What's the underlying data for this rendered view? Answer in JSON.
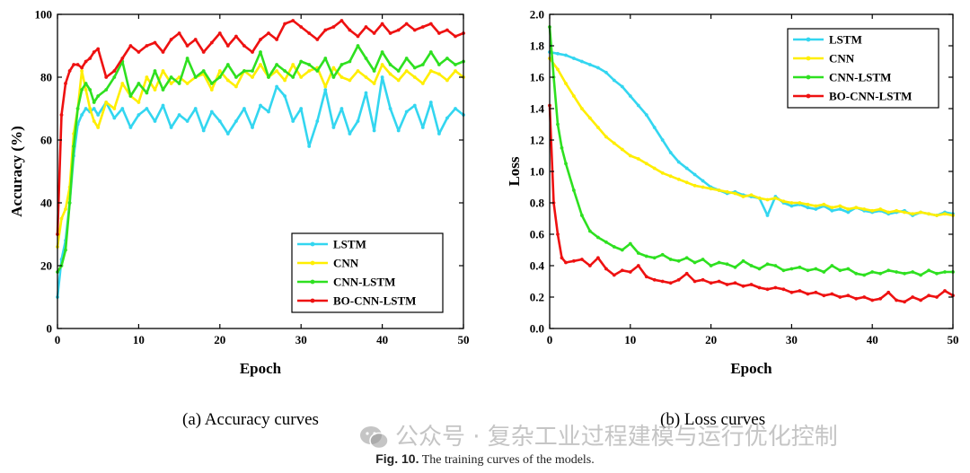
{
  "figure_caption": {
    "label": "Fig. 10.",
    "text": "The training curves of the models."
  },
  "watermark": "公众号 · 复杂工业过程建模与运行优化控制",
  "chart_data": [
    {
      "type": "line",
      "subtitle": "(a) Accuracy curves",
      "xlabel": "Epoch",
      "ylabel": "Accuracy (%)",
      "xlim": [
        0,
        50
      ],
      "ylim": [
        0,
        100
      ],
      "xticks": [
        0,
        10,
        20,
        30,
        40,
        50
      ],
      "yticks": [
        0,
        20,
        40,
        60,
        80,
        100
      ],
      "legend_position": "bottom-right",
      "series": [
        {
          "name": "LSTM",
          "color": "#33d6f0",
          "x": [
            0,
            0.5,
            1,
            1.5,
            2,
            2.5,
            3,
            3.5,
            4,
            4.5,
            5,
            6,
            7,
            8,
            9,
            10,
            11,
            12,
            13,
            14,
            15,
            16,
            17,
            18,
            19,
            20,
            21,
            22,
            23,
            24,
            25,
            26,
            27,
            28,
            29,
            30,
            31,
            32,
            33,
            34,
            35,
            36,
            37,
            38,
            39,
            40,
            41,
            42,
            43,
            44,
            45,
            46,
            47,
            48,
            49,
            50
          ],
          "y": [
            10,
            22,
            28,
            40,
            55,
            65,
            68,
            70,
            69,
            70,
            68,
            72,
            67,
            70,
            64,
            68,
            70,
            66,
            71,
            64,
            68,
            66,
            70,
            63,
            69,
            66,
            62,
            66,
            70,
            64,
            71,
            69,
            77,
            74,
            66,
            70,
            58,
            66,
            76,
            64,
            70,
            62,
            66,
            75,
            63,
            80,
            70,
            63,
            69,
            71,
            64,
            72,
            62,
            67,
            70,
            68
          ]
        },
        {
          "name": "CNN",
          "color": "#ffee00",
          "x": [
            0,
            0.5,
            1,
            1.5,
            2,
            2.5,
            3,
            3.5,
            4,
            4.5,
            5,
            6,
            7,
            8,
            9,
            10,
            11,
            12,
            13,
            14,
            15,
            16,
            17,
            18,
            19,
            20,
            21,
            22,
            23,
            24,
            25,
            26,
            27,
            28,
            29,
            30,
            31,
            32,
            33,
            34,
            35,
            36,
            37,
            38,
            39,
            40,
            41,
            42,
            43,
            44,
            45,
            46,
            47,
            48,
            49,
            50
          ],
          "y": [
            26,
            35,
            38,
            45,
            62,
            70,
            82,
            76,
            70,
            66,
            64,
            72,
            70,
            78,
            74,
            72,
            80,
            76,
            82,
            78,
            80,
            78,
            80,
            81,
            76,
            82,
            79,
            77,
            82,
            80,
            84,
            80,
            82,
            79,
            84,
            80,
            82,
            83,
            77,
            83,
            80,
            79,
            82,
            80,
            78,
            84,
            81,
            79,
            82,
            80,
            78,
            82,
            81,
            79,
            82,
            80
          ]
        },
        {
          "name": "CNN-LSTM",
          "color": "#2ee020",
          "x": [
            0,
            0.5,
            1,
            1.5,
            2,
            2.5,
            3,
            3.5,
            4,
            4.5,
            5,
            6,
            7,
            8,
            9,
            10,
            11,
            12,
            13,
            14,
            15,
            16,
            17,
            18,
            19,
            20,
            21,
            22,
            23,
            24,
            25,
            26,
            27,
            28,
            29,
            30,
            31,
            32,
            33,
            34,
            35,
            36,
            37,
            38,
            39,
            40,
            41,
            42,
            43,
            44,
            45,
            46,
            47,
            48,
            49,
            50
          ],
          "y": [
            18,
            20,
            25,
            40,
            58,
            70,
            76,
            78,
            76,
            72,
            74,
            76,
            80,
            85,
            74,
            78,
            75,
            82,
            76,
            80,
            78,
            86,
            80,
            82,
            78,
            80,
            84,
            80,
            82,
            82,
            88,
            80,
            84,
            82,
            80,
            85,
            84,
            82,
            86,
            80,
            84,
            85,
            90,
            86,
            82,
            88,
            84,
            82,
            86,
            83,
            84,
            88,
            84,
            86,
            84,
            85
          ]
        },
        {
          "name": "BO-CNN-LSTM",
          "color": "#ee1111",
          "x": [
            0,
            0.5,
            1,
            1.5,
            2,
            2.5,
            3,
            3.5,
            4,
            4.5,
            5,
            6,
            7,
            8,
            9,
            10,
            11,
            12,
            13,
            14,
            15,
            16,
            17,
            18,
            19,
            20,
            21,
            22,
            23,
            24,
            25,
            26,
            27,
            28,
            29,
            30,
            31,
            32,
            33,
            34,
            35,
            36,
            37,
            38,
            39,
            40,
            41,
            42,
            43,
            44,
            45,
            46,
            47,
            48,
            49,
            50
          ],
          "y": [
            30,
            68,
            78,
            82,
            84,
            84,
            83,
            85,
            86,
            88,
            89,
            80,
            82,
            86,
            90,
            88,
            90,
            91,
            88,
            92,
            94,
            90,
            92,
            88,
            91,
            94,
            90,
            93,
            90,
            88,
            92,
            94,
            92,
            97,
            98,
            96,
            94,
            92,
            95,
            96,
            98,
            95,
            93,
            96,
            94,
            97,
            94,
            95,
            97,
            95,
            96,
            97,
            94,
            95,
            93,
            94
          ]
        }
      ]
    },
    {
      "type": "line",
      "subtitle": "(b) Loss curves",
      "xlabel": "Epoch",
      "ylabel": "Loss",
      "xlim": [
        0,
        50
      ],
      "ylim": [
        0.0,
        2.0
      ],
      "xticks": [
        0,
        10,
        20,
        30,
        40,
        50
      ],
      "yticks": [
        0.0,
        0.2,
        0.4,
        0.6,
        0.8,
        1.0,
        1.2,
        1.4,
        1.6,
        1.8,
        2.0
      ],
      "legend_position": "top-right",
      "series": [
        {
          "name": "LSTM",
          "color": "#33d6f0",
          "x": [
            0,
            1,
            2,
            3,
            4,
            5,
            6,
            7,
            8,
            9,
            10,
            11,
            12,
            13,
            14,
            15,
            16,
            17,
            18,
            19,
            20,
            21,
            22,
            23,
            24,
            25,
            26,
            27,
            28,
            29,
            30,
            31,
            32,
            33,
            34,
            35,
            36,
            37,
            38,
            39,
            40,
            41,
            42,
            43,
            44,
            45,
            46,
            47,
            48,
            49,
            50
          ],
          "y": [
            1.76,
            1.75,
            1.74,
            1.72,
            1.7,
            1.68,
            1.66,
            1.63,
            1.58,
            1.54,
            1.48,
            1.42,
            1.36,
            1.28,
            1.2,
            1.12,
            1.06,
            1.02,
            0.98,
            0.94,
            0.9,
            0.88,
            0.86,
            0.87,
            0.85,
            0.84,
            0.83,
            0.72,
            0.84,
            0.8,
            0.78,
            0.79,
            0.77,
            0.76,
            0.78,
            0.75,
            0.76,
            0.74,
            0.77,
            0.75,
            0.74,
            0.75,
            0.73,
            0.74,
            0.75,
            0.72,
            0.74,
            0.73,
            0.72,
            0.74,
            0.73
          ]
        },
        {
          "name": "CNN",
          "color": "#ffee00",
          "x": [
            0,
            1,
            2,
            3,
            4,
            5,
            6,
            7,
            8,
            9,
            10,
            11,
            12,
            13,
            14,
            15,
            16,
            17,
            18,
            19,
            20,
            21,
            22,
            23,
            24,
            25,
            26,
            27,
            28,
            29,
            30,
            31,
            32,
            33,
            34,
            35,
            36,
            37,
            38,
            39,
            40,
            41,
            42,
            43,
            44,
            45,
            46,
            47,
            48,
            49,
            50
          ],
          "y": [
            1.72,
            1.65,
            1.56,
            1.48,
            1.4,
            1.34,
            1.28,
            1.22,
            1.18,
            1.14,
            1.1,
            1.08,
            1.05,
            1.02,
            0.99,
            0.97,
            0.95,
            0.93,
            0.91,
            0.9,
            0.89,
            0.88,
            0.87,
            0.86,
            0.84,
            0.85,
            0.83,
            0.82,
            0.83,
            0.81,
            0.8,
            0.8,
            0.79,
            0.78,
            0.79,
            0.77,
            0.78,
            0.76,
            0.77,
            0.76,
            0.75,
            0.76,
            0.74,
            0.75,
            0.74,
            0.73,
            0.74,
            0.73,
            0.72,
            0.73,
            0.72
          ]
        },
        {
          "name": "CNN-LSTM",
          "color": "#2ee020",
          "x": [
            0,
            0.5,
            1,
            1.5,
            2,
            3,
            4,
            5,
            6,
            7,
            8,
            9,
            10,
            11,
            12,
            13,
            14,
            15,
            16,
            17,
            18,
            19,
            20,
            21,
            22,
            23,
            24,
            25,
            26,
            27,
            28,
            29,
            30,
            31,
            32,
            33,
            34,
            35,
            36,
            37,
            38,
            39,
            40,
            41,
            42,
            43,
            44,
            45,
            46,
            47,
            48,
            49,
            50
          ],
          "y": [
            1.92,
            1.6,
            1.3,
            1.15,
            1.05,
            0.88,
            0.72,
            0.62,
            0.58,
            0.55,
            0.52,
            0.5,
            0.54,
            0.48,
            0.46,
            0.45,
            0.47,
            0.44,
            0.43,
            0.45,
            0.42,
            0.44,
            0.4,
            0.42,
            0.41,
            0.39,
            0.43,
            0.4,
            0.38,
            0.41,
            0.4,
            0.37,
            0.38,
            0.39,
            0.37,
            0.38,
            0.36,
            0.4,
            0.37,
            0.38,
            0.35,
            0.34,
            0.36,
            0.35,
            0.37,
            0.36,
            0.35,
            0.36,
            0.34,
            0.37,
            0.35,
            0.36,
            0.36
          ]
        },
        {
          "name": "BO-CNN-LSTM",
          "color": "#ee1111",
          "x": [
            0,
            0.5,
            1,
            1.5,
            2,
            3,
            4,
            5,
            6,
            7,
            8,
            9,
            10,
            11,
            12,
            13,
            14,
            15,
            16,
            17,
            18,
            19,
            20,
            21,
            22,
            23,
            24,
            25,
            26,
            27,
            28,
            29,
            30,
            31,
            32,
            33,
            34,
            35,
            36,
            37,
            38,
            39,
            40,
            41,
            42,
            43,
            44,
            45,
            46,
            47,
            48,
            49,
            50
          ],
          "y": [
            1.42,
            0.8,
            0.6,
            0.45,
            0.42,
            0.43,
            0.44,
            0.4,
            0.45,
            0.38,
            0.34,
            0.37,
            0.36,
            0.4,
            0.33,
            0.31,
            0.3,
            0.29,
            0.31,
            0.35,
            0.3,
            0.31,
            0.29,
            0.3,
            0.28,
            0.29,
            0.27,
            0.28,
            0.26,
            0.25,
            0.26,
            0.25,
            0.23,
            0.24,
            0.22,
            0.23,
            0.21,
            0.22,
            0.2,
            0.21,
            0.19,
            0.2,
            0.18,
            0.19,
            0.23,
            0.18,
            0.17,
            0.2,
            0.18,
            0.21,
            0.2,
            0.24,
            0.21
          ]
        }
      ]
    }
  ]
}
